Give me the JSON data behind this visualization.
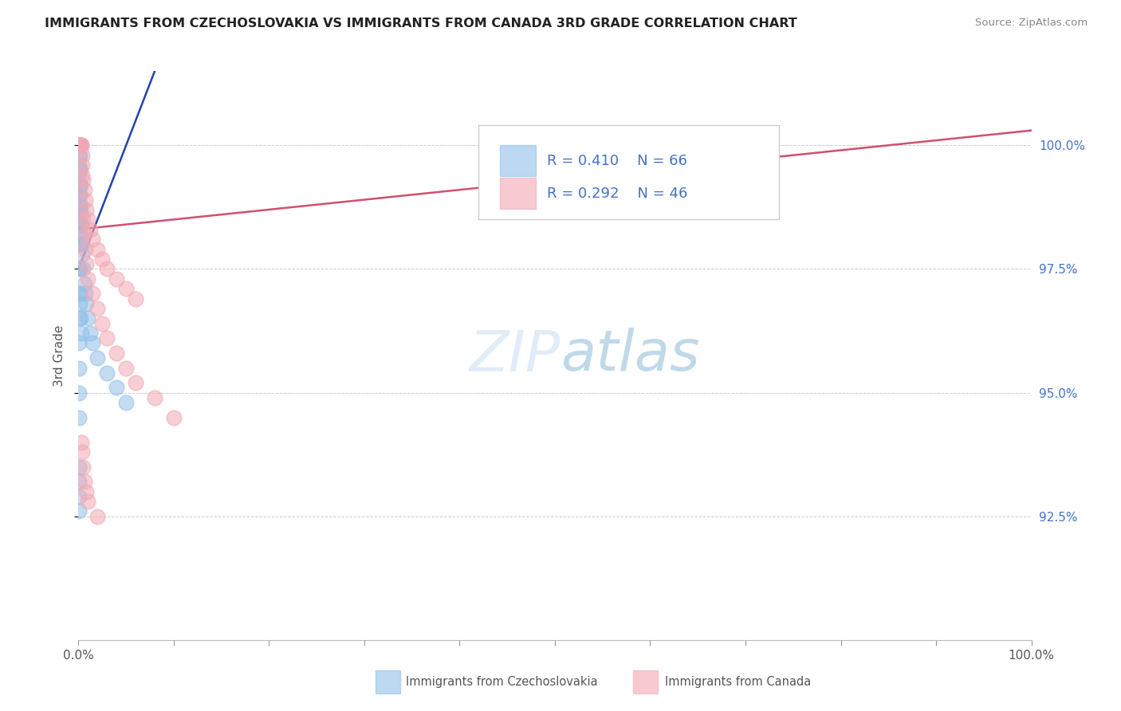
{
  "title": "IMMIGRANTS FROM CZECHOSLOVAKIA VS IMMIGRANTS FROM CANADA 3RD GRADE CORRELATION CHART",
  "source": "Source: ZipAtlas.com",
  "ylabel": "3rd Grade",
  "blue_R": 0.41,
  "blue_N": 66,
  "pink_R": 0.292,
  "pink_N": 46,
  "blue_color": "#92C0E8",
  "pink_color": "#F2A8B4",
  "blue_line_color": "#2244AA",
  "pink_line_color": "#D05070",
  "legend_blue_label": "Immigrants from Czechoslovakia",
  "legend_pink_label": "Immigrants from Canada",
  "watermark_zip": "ZIP",
  "watermark_atlas": "atlas",
  "ylim_min": 90.0,
  "ylim_max": 101.5,
  "yticks": [
    92.5,
    95.0,
    97.5,
    100.0
  ],
  "blue_x": [
    0.05,
    0.05,
    0.05,
    0.05,
    0.05,
    0.05,
    0.05,
    0.05,
    0.05,
    0.05,
    0.05,
    0.05,
    0.05,
    0.05,
    0.05,
    0.05,
    0.05,
    0.05,
    0.05,
    0.05,
    0.1,
    0.1,
    0.1,
    0.1,
    0.1,
    0.1,
    0.1,
    0.1,
    0.15,
    0.15,
    0.15,
    0.15,
    0.2,
    0.2,
    0.2,
    0.25,
    0.3,
    0.35,
    0.4,
    0.5,
    0.6,
    0.7,
    0.8,
    1.0,
    1.2,
    1.5,
    2.0,
    3.0,
    4.0,
    5.0,
    0.05,
    0.05,
    0.05,
    0.05,
    0.05,
    0.05,
    0.05,
    0.1,
    0.1,
    0.15,
    0.2,
    0.3,
    0.05,
    0.05,
    0.05,
    0.05
  ],
  "blue_y": [
    100.0,
    100.0,
    100.0,
    100.0,
    100.0,
    100.0,
    100.0,
    100.0,
    100.0,
    100.0,
    99.8,
    99.6,
    99.4,
    99.2,
    99.0,
    98.8,
    98.6,
    98.4,
    98.2,
    98.0,
    100.0,
    99.8,
    99.5,
    99.2,
    99.0,
    98.7,
    98.4,
    98.0,
    99.5,
    99.0,
    98.5,
    98.0,
    99.2,
    98.7,
    98.2,
    98.8,
    98.4,
    98.0,
    97.8,
    97.5,
    97.2,
    97.0,
    96.8,
    96.5,
    96.2,
    96.0,
    95.7,
    95.4,
    95.1,
    94.8,
    97.5,
    97.0,
    96.5,
    96.0,
    95.5,
    95.0,
    94.5,
    97.5,
    97.0,
    96.8,
    96.5,
    96.2,
    93.5,
    93.2,
    92.9,
    92.6
  ],
  "pink_x": [
    0.1,
    0.15,
    0.15,
    0.2,
    0.2,
    0.25,
    0.25,
    0.3,
    0.3,
    0.35,
    0.4,
    0.4,
    0.5,
    0.6,
    0.7,
    0.8,
    1.0,
    1.2,
    1.5,
    2.0,
    2.5,
    3.0,
    4.0,
    5.0,
    6.0,
    0.5,
    0.6,
    0.7,
    0.8,
    1.0,
    1.5,
    2.0,
    2.5,
    3.0,
    4.0,
    5.0,
    6.0,
    8.0,
    10.0,
    0.3,
    0.4,
    0.5,
    0.6,
    0.8,
    1.0,
    2.0
  ],
  "pink_y": [
    100.0,
    100.0,
    100.0,
    100.0,
    100.0,
    100.0,
    100.0,
    100.0,
    100.0,
    99.8,
    99.6,
    99.4,
    99.3,
    99.1,
    98.9,
    98.7,
    98.5,
    98.3,
    98.1,
    97.9,
    97.7,
    97.5,
    97.3,
    97.1,
    96.9,
    98.5,
    98.2,
    97.9,
    97.6,
    97.3,
    97.0,
    96.7,
    96.4,
    96.1,
    95.8,
    95.5,
    95.2,
    94.9,
    94.5,
    94.0,
    93.8,
    93.5,
    93.2,
    93.0,
    92.8,
    92.5
  ]
}
